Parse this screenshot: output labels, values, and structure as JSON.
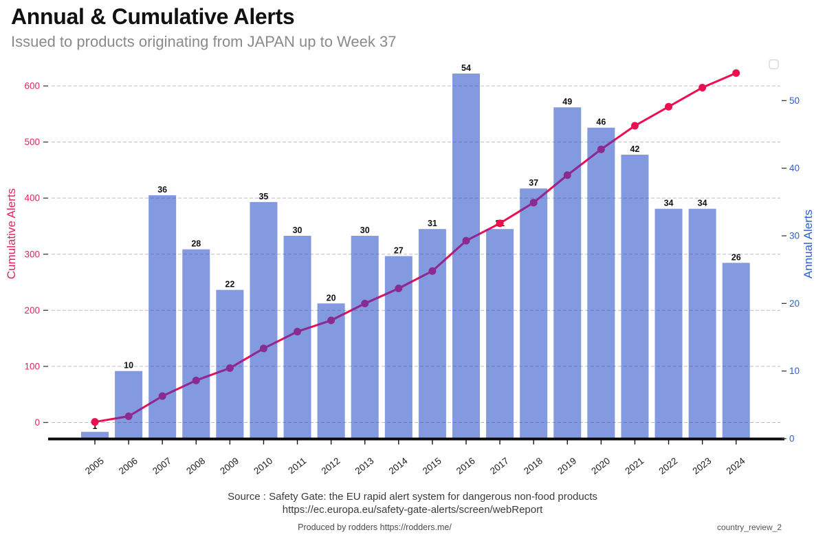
{
  "header": {
    "title": "Annual & Cumulative Alerts",
    "subtitle": "Issued to products originating from JAPAN up to Week 37"
  },
  "chart_data": {
    "type": "combo",
    "title": "Annual & Cumulative Alerts",
    "subtitle": "Issued to products originating from JAPAN up to Week 37",
    "categories": [
      "2005",
      "2006",
      "2007",
      "2008",
      "2009",
      "2010",
      "2011",
      "2012",
      "2013",
      "2014",
      "2015",
      "2016",
      "2017",
      "2018",
      "2019",
      "2020",
      "2021",
      "2022",
      "2023",
      "2024"
    ],
    "series": [
      {
        "name": "Annual Alerts",
        "type": "bar",
        "axis": "right",
        "color": "#8399E0",
        "data_labels": true,
        "values": [
          1,
          10,
          36,
          28,
          22,
          35,
          30,
          20,
          30,
          27,
          31,
          54,
          31,
          37,
          49,
          46,
          42,
          34,
          34,
          26
        ]
      },
      {
        "name": "Cumulative Alerts",
        "type": "line",
        "axis": "left",
        "color": "#EE0D50",
        "overlap_color": "#8A2B92",
        "marker": "circle",
        "values": [
          1,
          11,
          47,
          75,
          97,
          132,
          162,
          182,
          212,
          239,
          270,
          324,
          355,
          392,
          441,
          487,
          529,
          563,
          597,
          623
        ]
      }
    ],
    "left_axis": {
      "label": "Cumulative Alerts",
      "color": "#E8215A",
      "ticks": [
        0,
        100,
        200,
        300,
        400,
        500,
        600
      ],
      "range": [
        0,
        643
      ]
    },
    "right_axis": {
      "label": "Annual Alerts",
      "color": "#2B5FD3",
      "ticks": [
        0,
        10,
        20,
        30,
        40,
        50
      ],
      "range": [
        0,
        56
      ]
    },
    "x_axis": {
      "tick_rotation": -38,
      "label_color": "#1b1b1b"
    },
    "grid": "horizontal dashed (left-axis ticks only)",
    "grid_color": "#bdbdbd",
    "axis_line_color": "#0b0b0b",
    "bar_label_color": "#111111",
    "legend_position": "top-right-empty-box"
  },
  "legend": {
    "box": "empty"
  },
  "footer": {
    "source_line1": "Source : Safety Gate: the EU rapid alert system for dangerous non-food products",
    "source_line2": "https://ec.europa.eu/safety-gate-alerts/screen/webReport",
    "produced_by": "Produced by rodders https://rodders.me/",
    "file_label": "country_review_2"
  }
}
